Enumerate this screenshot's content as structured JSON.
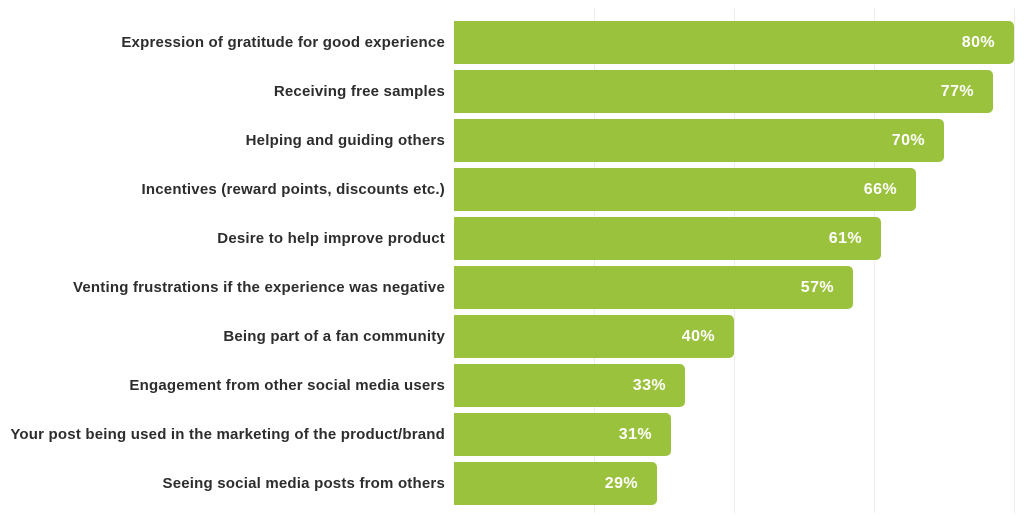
{
  "chart_data": {
    "type": "bar",
    "orientation": "horizontal",
    "title": "",
    "xlabel": "",
    "ylabel": "",
    "unit": "%",
    "categories": [
      "Expression of gratitude for good experience",
      "Receiving free samples",
      "Helping and guiding others",
      "Incentives (reward points, discounts etc.)",
      "Desire to help improve product",
      "Venting frustrations if the experience was negative",
      "Being part of a fan community",
      "Engagement from other social media users",
      "Your post being used in the marketing of the product/brand",
      "Seeing social media posts from others"
    ],
    "values": [
      80,
      77,
      70,
      66,
      61,
      57,
      40,
      33,
      31,
      29
    ],
    "xlim": [
      0,
      81
    ],
    "gridline_values": [
      20,
      40,
      60,
      80
    ],
    "grid": "vertical faint lines, no axis labels",
    "legend": "none",
    "bar_color": "#9ac23c",
    "category_label_color": "#2d2d2d",
    "value_label_color": "#ffffff",
    "gridline_color": "#ececec",
    "background_color": "#ffffff"
  }
}
